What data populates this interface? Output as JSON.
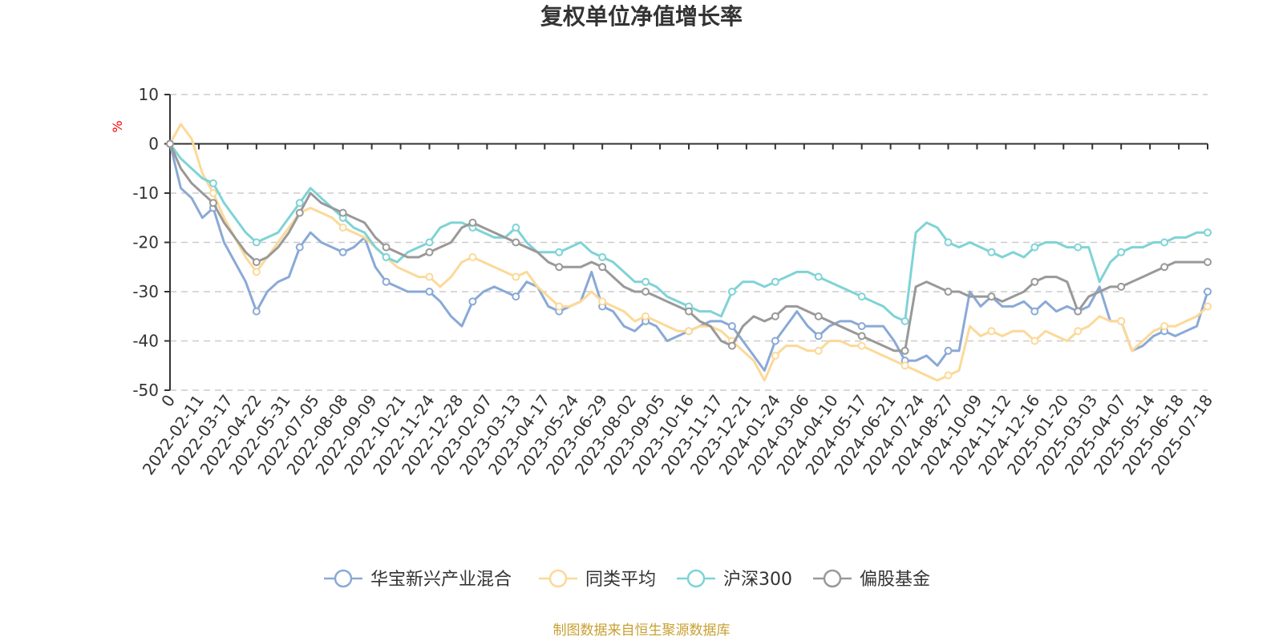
{
  "chart_data": {
    "type": "line",
    "title": "复权单位净值增长率",
    "ylabel": "%",
    "ylim": [
      -50,
      10
    ],
    "yticks": [
      10,
      0,
      -10,
      -20,
      -30,
      -40,
      -50
    ],
    "x_tick_labels": [
      "0",
      "2022-02-11",
      "2022-03-17",
      "2022-04-22",
      "2022-05-31",
      "2022-07-05",
      "2022-08-08",
      "2022-09-09",
      "2022-10-21",
      "2022-11-24",
      "2022-12-28",
      "2023-02-07",
      "2023-03-13",
      "2023-04-17",
      "2023-05-24",
      "2023-06-29",
      "2023-08-02",
      "2023-09-05",
      "2023-10-16",
      "2023-11-17",
      "2023-12-21",
      "2024-01-24",
      "2024-03-06",
      "2024-04-10",
      "2024-05-17",
      "2024-06-21",
      "2024-07-24",
      "2024-08-27",
      "2024-10-09",
      "2024-11-12",
      "2024-12-16",
      "2025-01-20",
      "2025-03-03",
      "2025-04-07",
      "2025-05-14",
      "2025-06-18",
      "2025-07-18"
    ],
    "grid": true,
    "legend_position": "bottom",
    "series": [
      {
        "name": "华宝新兴产业混合",
        "color": "#8aa9d6",
        "values": [
          0,
          -9,
          -11,
          -15,
          -13,
          -20,
          -24,
          -28,
          -34,
          -30,
          -28,
          -27,
          -21,
          -18,
          -20,
          -21,
          -22,
          -21,
          -19,
          -25,
          -28,
          -29,
          -30,
          -30,
          -30,
          -32,
          -35,
          -37,
          -32,
          -30,
          -29,
          -30,
          -31,
          -28,
          -29,
          -33,
          -34,
          -33,
          -32,
          -26,
          -33,
          -34,
          -37,
          -38,
          -36,
          -37,
          -40,
          -39,
          -38,
          -37,
          -36,
          -36,
          -37,
          -40,
          -43,
          -46,
          -40,
          -37,
          -34,
          -37,
          -39,
          -37,
          -36,
          -36,
          -37,
          -37,
          -37,
          -40,
          -44,
          -44,
          -43,
          -45,
          -42,
          -42,
          -30,
          -33,
          -31,
          -33,
          -33,
          -32,
          -34,
          -32,
          -34,
          -33,
          -34,
          -33,
          -29,
          -36,
          -36,
          -42,
          -41,
          -39,
          -38,
          -39,
          -38,
          -37,
          -30
        ]
      },
      {
        "name": "同类平均",
        "color": "#fcd999",
        "values": [
          0,
          4,
          1,
          -6,
          -10,
          -15,
          -19,
          -23,
          -26,
          -23,
          -20,
          -17,
          -14,
          -13,
          -14,
          -15,
          -17,
          -18,
          -19,
          -21,
          -23,
          -25,
          -26,
          -27,
          -27,
          -29,
          -27,
          -24,
          -23,
          -24,
          -25,
          -26,
          -27,
          -26,
          -29,
          -31,
          -33,
          -33,
          -32,
          -30,
          -32,
          -33,
          -34,
          -36,
          -35,
          -36,
          -37,
          -38,
          -38,
          -37,
          -37,
          -38,
          -40,
          -42,
          -44,
          -48,
          -43,
          -41,
          -41,
          -42,
          -42,
          -40,
          -40,
          -41,
          -41,
          -42,
          -43,
          -44,
          -45,
          -46,
          -47,
          -48,
          -47,
          -46,
          -37,
          -39,
          -38,
          -39,
          -38,
          -38,
          -40,
          -38,
          -39,
          -40,
          -38,
          -37,
          -35,
          -36,
          -36,
          -42,
          -40,
          -38,
          -37,
          -37,
          -36,
          -35,
          -33
        ]
      },
      {
        "name": "沪深300",
        "color": "#7fd3d6",
        "values": [
          0,
          -3,
          -5,
          -7,
          -8,
          -12,
          -15,
          -18,
          -20,
          -19,
          -18,
          -15,
          -12,
          -9,
          -11,
          -13,
          -15,
          -17,
          -18,
          -21,
          -23,
          -24,
          -22,
          -21,
          -20,
          -17,
          -16,
          -16,
          -17,
          -18,
          -19,
          -19,
          -17,
          -20,
          -22,
          -22,
          -22,
          -21,
          -20,
          -22,
          -23,
          -24,
          -26,
          -28,
          -28,
          -29,
          -31,
          -32,
          -33,
          -34,
          -34,
          -35,
          -30,
          -28,
          -28,
          -29,
          -28,
          -27,
          -26,
          -26,
          -27,
          -28,
          -29,
          -30,
          -31,
          -32,
          -33,
          -35,
          -36,
          -18,
          -16,
          -17,
          -20,
          -21,
          -20,
          -21,
          -22,
          -23,
          -22,
          -23,
          -21,
          -20,
          -20,
          -21,
          -21,
          -21,
          -28,
          -24,
          -22,
          -21,
          -21,
          -20,
          -20,
          -19,
          -19,
          -18,
          -18
        ]
      },
      {
        "name": "偏股基金",
        "color": "#999999",
        "values": [
          0,
          -5,
          -8,
          -10,
          -12,
          -16,
          -19,
          -22,
          -24,
          -23,
          -21,
          -18,
          -14,
          -10,
          -12,
          -13,
          -14,
          -15,
          -16,
          -19,
          -21,
          -22,
          -23,
          -23,
          -22,
          -21,
          -20,
          -17,
          -16,
          -17,
          -18,
          -19,
          -20,
          -21,
          -22,
          -24,
          -25,
          -25,
          -25,
          -24,
          -25,
          -27,
          -29,
          -30,
          -30,
          -31,
          -32,
          -33,
          -34,
          -36,
          -37,
          -40,
          -41,
          -37,
          -35,
          -36,
          -35,
          -33,
          -33,
          -34,
          -35,
          -36,
          -37,
          -38,
          -39,
          -40,
          -41,
          -42,
          -42,
          -29,
          -28,
          -29,
          -30,
          -30,
          -31,
          -31,
          -31,
          -32,
          -31,
          -30,
          -28,
          -27,
          -27,
          -28,
          -34,
          -31,
          -30,
          -29,
          -29,
          -28,
          -27,
          -26,
          -25,
          -24,
          -24,
          -24,
          -24
        ]
      }
    ]
  },
  "source_note": "制图数据来自恒生聚源数据库"
}
